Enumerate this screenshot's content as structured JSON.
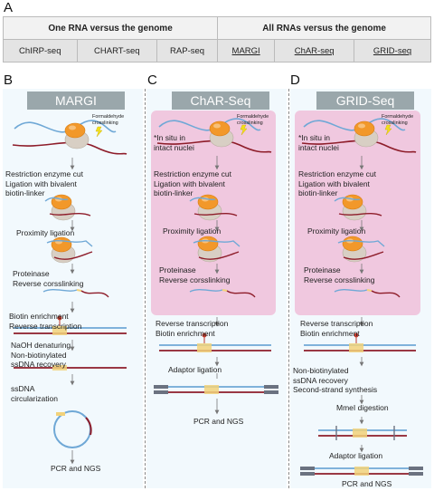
{
  "panel_a": {
    "letter": "A",
    "header_left": "One RNA versus the genome",
    "header_right": "All RNAs versus the genome",
    "methods_left": [
      "ChIRP-seq",
      "CHART-seq",
      "RAP-seq"
    ],
    "methods_right": [
      "MARGI",
      "ChAR-seq",
      "GRID-seq"
    ]
  },
  "panel_b": {
    "letter": "B",
    "title": "MARGI",
    "crosslink_note": "Formaldehyde crosslinking",
    "steps": [
      "Restriction enzyme cut\nLigation with bivalent\nbiotin-linker",
      "Proximity ligation",
      "Proteinase\nReverse corsslinking",
      "Biotin enrichment\nReverse transcription",
      "NaOH denaturing\nNon-biotinylated\nssDNA recovery",
      "ssDNA\ncircularization"
    ],
    "final": "PCR and NGS"
  },
  "panel_c": {
    "letter": "C",
    "title": "ChAR-Seq",
    "crosslink_note": "Formaldehyde crosslinking",
    "insitu_note": "*In situ in\nintact nuclei",
    "steps": [
      "Restriction enzyme cut\nLigation with bivalent\nbiotin-linker",
      "Proximity ligation",
      "Proteinase\nReverse corsslinking",
      "Reverse transcription\nBiotin enrichment",
      "Adaptor ligation"
    ],
    "final": "PCR and NGS"
  },
  "panel_d": {
    "letter": "D",
    "title": "GRID-Seq",
    "crosslink_note": "Formaldehyde crosslinking",
    "insitu_note": "*In situ in\nintact nuclei",
    "steps": [
      "Restriction enzyme cut\nLigation with bivalent\nbiotin-linker",
      "Proximity ligation",
      "Proteinase\nReverse corsslinking",
      "Reverse transcription\nBiotin enrichment",
      "Non-biotinylated\nssDNA recovery\nSecond-strand synthesis",
      "MmeI digestion",
      "Adaptor ligation"
    ],
    "final": "PCR and NGS"
  },
  "colors": {
    "rna": "#6fa8d6",
    "dna": "#8e1d2a",
    "protein": "#f2982a",
    "nucleosome": "#d8cfc4",
    "linker": "#f2d27a",
    "panel_bg": "#f2f9fd",
    "insitu_bg": "#f0c8df",
    "title_bg": "#9aa7ab",
    "adaptor": "#6b7280",
    "biotin": "#c0392b"
  }
}
